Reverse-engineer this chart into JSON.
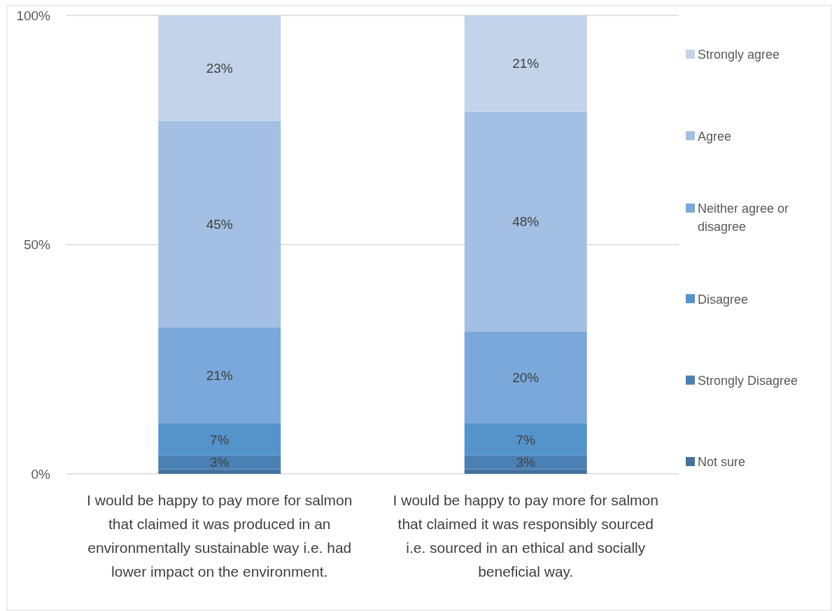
{
  "chart_data": {
    "type": "bar",
    "stacked": true,
    "categories": [
      "I would be happy to pay more for salmon that claimed it was produced in an environmentally sustainable way i.e. had lower impact on the environment.",
      "I would be happy to pay more for salmon that claimed it was responsibly sourced i.e. sourced in an ethical and socially beneficial way."
    ],
    "series": [
      {
        "name": "Not sure",
        "color": "#44729f",
        "values": [
          1,
          1
        ],
        "value_labels": [
          null,
          null
        ]
      },
      {
        "name": "Strongly Disagree",
        "color": "#4a80b4",
        "values": [
          3,
          3
        ],
        "value_labels": [
          "3%",
          "3%"
        ]
      },
      {
        "name": "Disagree",
        "color": "#5593cb",
        "values": [
          7,
          7
        ],
        "value_labels": [
          "7%",
          "7%"
        ]
      },
      {
        "name": "Neither agree or disagree",
        "color": "#7aa8da",
        "values": [
          21,
          20
        ],
        "value_labels": [
          "21%",
          "20%"
        ]
      },
      {
        "name": "Agree",
        "color": "#a3bfe3",
        "values": [
          45,
          48
        ],
        "value_labels": [
          "45%",
          "48%"
        ]
      },
      {
        "name": "Strongly agree",
        "color": "#c3d3ea",
        "values": [
          23,
          21
        ],
        "value_labels": [
          "23%",
          "21%"
        ]
      }
    ],
    "ylim": [
      0,
      100
    ],
    "yticks": [
      {
        "value": 0,
        "label": "0%"
      },
      {
        "value": 50,
        "label": "50%"
      },
      {
        "value": 100,
        "label": "100%"
      }
    ],
    "grid": "y",
    "legend": "right"
  }
}
